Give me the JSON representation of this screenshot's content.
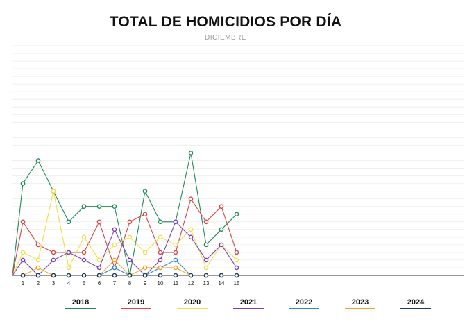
{
  "chart_data": {
    "type": "line",
    "title": "TOTAL DE HOMICIDIOS POR DÍA",
    "subtitle": "DICIEMBRE",
    "x": [
      1,
      2,
      3,
      4,
      5,
      6,
      7,
      8,
      9,
      10,
      11,
      12,
      13,
      14,
      15
    ],
    "ylim": [
      0,
      30
    ],
    "grid": true,
    "legend_position": "bottom",
    "series": [
      {
        "name": "2018",
        "color": "#1f8a55",
        "values": [
          12,
          15,
          11,
          7,
          9,
          9,
          9,
          0,
          11,
          7,
          7,
          16,
          4,
          6,
          8
        ]
      },
      {
        "name": "2019",
        "color": "#d64541",
        "values": [
          7,
          4,
          3,
          3,
          3,
          7,
          1,
          7,
          8,
          3,
          3,
          10,
          7,
          9,
          3
        ]
      },
      {
        "name": "2020",
        "color": "#f2de4a",
        "values": [
          3,
          2,
          11,
          1,
          5,
          2,
          4,
          5,
          3,
          5,
          4,
          6,
          1,
          4,
          2
        ]
      },
      {
        "name": "2021",
        "color": "#7b3fb8",
        "values": [
          2,
          0,
          2,
          3,
          2,
          1,
          6,
          2,
          0,
          2,
          7,
          5,
          2,
          4,
          1
        ]
      },
      {
        "name": "2022",
        "color": "#2f86c9",
        "values": [
          0,
          0,
          0,
          0,
          0,
          0,
          1,
          0,
          0,
          1,
          2,
          0,
          0,
          0,
          0
        ]
      },
      {
        "name": "2023",
        "color": "#f0a42b",
        "values": [
          0,
          1,
          0,
          0,
          0,
          0,
          2,
          0,
          1,
          1,
          1,
          0,
          0,
          0,
          0
        ]
      },
      {
        "name": "2024",
        "color": "#1c3a57",
        "values": [
          0,
          0,
          0,
          0,
          0,
          0,
          0,
          0,
          0,
          0,
          0,
          0,
          0,
          0,
          0
        ]
      }
    ]
  }
}
